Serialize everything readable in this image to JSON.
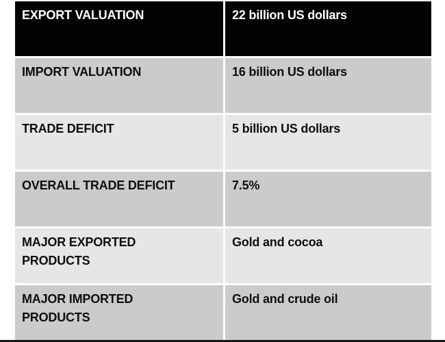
{
  "table": {
    "description": "Trade statistics table",
    "rows": [
      {
        "label": "EXPORT VALUATION",
        "value": "22 billion US dollars",
        "variant": "header"
      },
      {
        "label": "IMPORT VALUATION",
        "value": "16 billion US dollars",
        "variant": "gray"
      },
      {
        "label": "TRADE DEFICIT",
        "value": "5 billion US dollars",
        "variant": "light"
      },
      {
        "label": "OVERALL TRADE DEFICIT",
        "value": "7.5%",
        "variant": "gray"
      },
      {
        "label": "MAJOR EXPORTED PRODUCTS",
        "value": "Gold and cocoa",
        "variant": "light"
      },
      {
        "label": "MAJOR IMPORTED PRODUCTS",
        "value": "Gold and crude oil",
        "variant": "gray"
      }
    ]
  },
  "colors": {
    "page_bg": "#ffffff",
    "header_bg": "#030303",
    "header_text": "#ffffff",
    "row_gray": "#cbcbcb",
    "row_light": "#e6e6e6",
    "body_text": "#0e0e0e",
    "divider": "#ffffff",
    "bottom_bar": "#161616"
  }
}
